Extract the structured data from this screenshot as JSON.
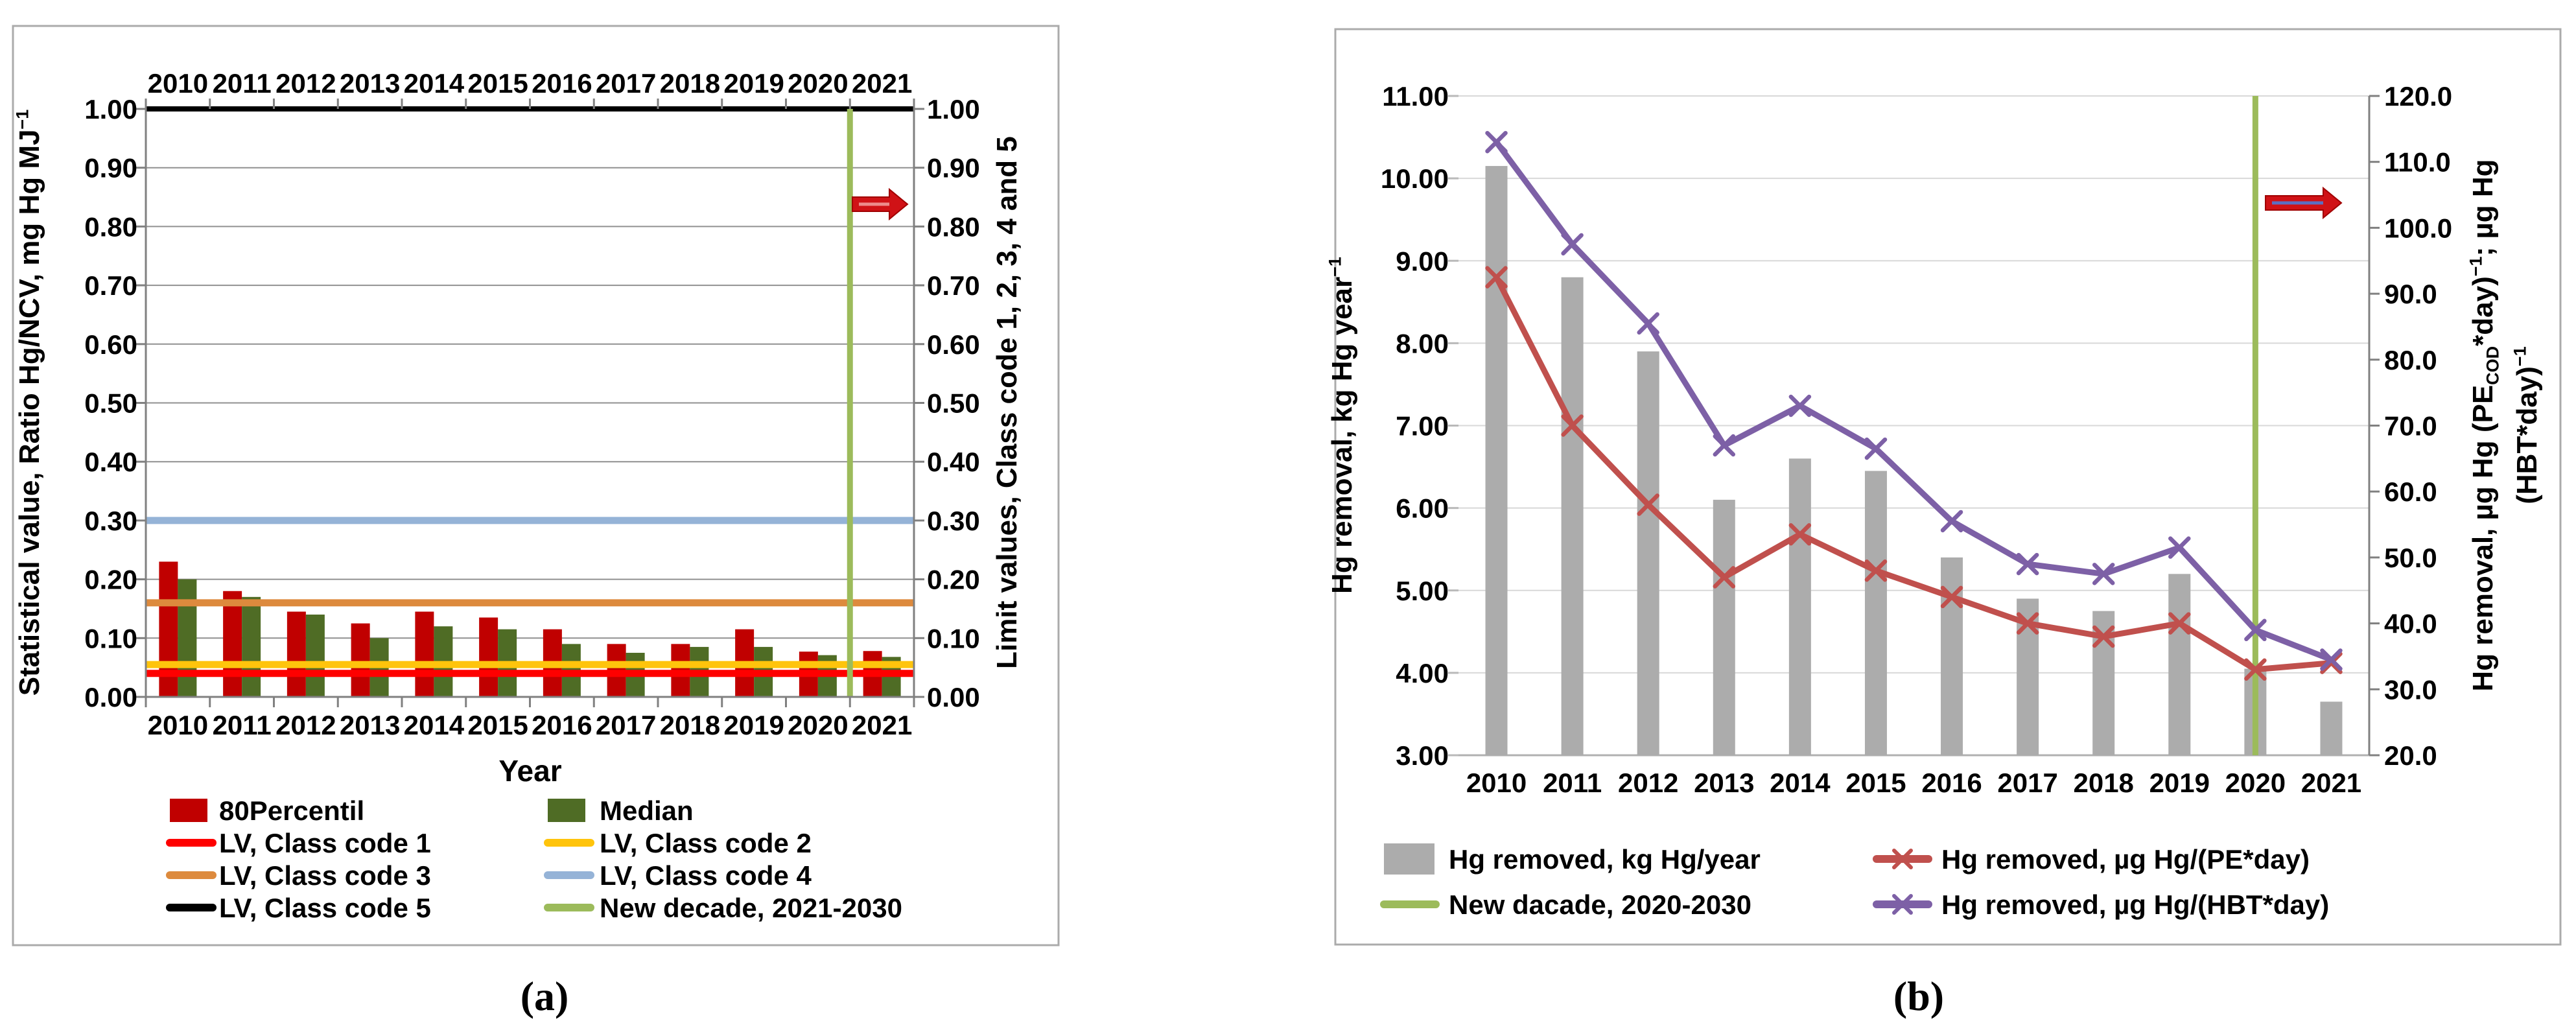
{
  "figure": {
    "background": "#ffffff",
    "border_color": "#ABABAB"
  },
  "panels": {
    "a": {
      "caption": "(a)",
      "x_axis_title": "Year",
      "years": [
        "2010",
        "2011",
        "2012",
        "2013",
        "2014",
        "2015",
        "2016",
        "2017",
        "2018",
        "2019",
        "2020",
        "2021"
      ],
      "left_axis_tick_labels": [
        "1.00",
        "0.90",
        "0.80",
        "0.70",
        "0.60",
        "0.50",
        "0.40",
        "0.30",
        "0.20",
        "0.10",
        "0.00"
      ],
      "right_axis_tick_labels": [
        "1.00",
        "0.90",
        "0.80",
        "0.70",
        "0.60",
        "0.50",
        "0.40",
        "0.30",
        "0.20",
        "0.10",
        "0.00"
      ],
      "left_axis_title_parts": [
        {
          "t": "Statistical value, Ratio Hg/NCV, mg Hg MJ"
        },
        {
          "t": "−1",
          "sup": true
        }
      ],
      "right_axis_title_parts": [
        {
          "t": "Limit values, Class code 1, 2, 3, 4 and 5"
        }
      ],
      "legend_rows": [
        [
          {
            "label": "80Percentil",
            "swatch": "bar",
            "color": "#C00000"
          },
          {
            "label": "Median",
            "swatch": "bar",
            "color": "#4F6C25"
          }
        ],
        [
          {
            "label": "LV, Class code 1",
            "swatch": "line",
            "color": "#FE0000"
          },
          {
            "label": "LV, Class code 2",
            "swatch": "line",
            "color": "#FFC40C"
          }
        ],
        [
          {
            "label": "LV, Class code 3",
            "swatch": "line",
            "color": "#DD8A3D"
          },
          {
            "label": "LV, Class code 4",
            "swatch": "line",
            "color": "#95B3D7"
          }
        ],
        [
          {
            "label": "LV, Class code 5",
            "swatch": "line",
            "color": "#000000"
          },
          {
            "label": "New decade, 2021-2030",
            "swatch": "line",
            "color": "#9CBB5B"
          }
        ]
      ]
    },
    "b": {
      "caption": "(b)",
      "years": [
        "2010",
        "2011",
        "2012",
        "2013",
        "2014",
        "2015",
        "2016",
        "2017",
        "2018",
        "2019",
        "2020",
        "2021"
      ],
      "left_axis_tick_labels": [
        "11.00",
        "10.00",
        "9.00",
        "8.00",
        "7.00",
        "6.00",
        "5.00",
        "4.00",
        "3.00"
      ],
      "right_axis_tick_labels": [
        "120.0",
        "110.0",
        "100.0",
        "90.0",
        "80.0",
        "70.0",
        "60.0",
        "50.0",
        "40.0",
        "30.0",
        "20.0"
      ],
      "left_axis_title_parts": [
        {
          "t": "Hg removal, kg Hg year"
        },
        {
          "t": "−1",
          "sup": true
        }
      ],
      "right_axis_title_lines": [
        [
          {
            "t": "Hg removal, µg Hg (PE"
          },
          {
            "t": "COD",
            "sub": true
          },
          {
            "t": "*day)"
          },
          {
            "t": "−1",
            "sup": true
          },
          {
            "t": "; µg Hg"
          }
        ],
        [
          {
            "t": "(HBT*day)"
          },
          {
            "t": "−1",
            "sup": true
          }
        ]
      ],
      "legend_rows": [
        [
          {
            "label": "Hg removed, kg Hg/year",
            "swatch": "bar",
            "color": "#ACACAC"
          },
          {
            "label": "Hg removed, µg Hg/(PE*day)",
            "swatch": "line-x",
            "color": "#C0504D"
          }
        ],
        [
          {
            "label": "New dacade, 2020-2030",
            "swatch": "line",
            "color": "#9CBB5B"
          },
          {
            "label": "Hg removed, µg Hg/(HBT*day)",
            "swatch": "line-x",
            "color": "#7D60A6"
          }
        ]
      ]
    }
  },
  "chart_data": [
    {
      "id": "a",
      "type": "bar",
      "categories": [
        2010,
        2011,
        2012,
        2013,
        2014,
        2015,
        2016,
        2017,
        2018,
        2019,
        2020,
        2021
      ],
      "series": [
        {
          "name": "80Percentil",
          "color": "#C00000",
          "values": [
            0.23,
            0.18,
            0.145,
            0.125,
            0.145,
            0.135,
            0.115,
            0.09,
            0.09,
            0.115,
            0.077,
            0.078
          ]
        },
        {
          "name": "Median",
          "color": "#4F6C25",
          "values": [
            0.2,
            0.17,
            0.14,
            0.1,
            0.12,
            0.115,
            0.09,
            0.075,
            0.085,
            0.085,
            0.071,
            0.068
          ]
        }
      ],
      "limit_lines": [
        {
          "name": "LV, Class code 1",
          "value": 0.04,
          "color": "#FE0000"
        },
        {
          "name": "LV, Class code 2",
          "value": 0.055,
          "color": "#FFC40C"
        },
        {
          "name": "LV, Class code 3",
          "value": 0.16,
          "color": "#DD8A3D"
        },
        {
          "name": "LV, Class code 4",
          "value": 0.3,
          "color": "#95B3D7"
        },
        {
          "name": "LV, Class code 5",
          "value": 1.0,
          "color": "#000000"
        }
      ],
      "decade_line": {
        "name": "New decade, 2021-2030",
        "color": "#9CBB5B",
        "between": [
          2020,
          2021
        ]
      },
      "arrow_value": 0.84,
      "xlabel": "Year",
      "ylabel": "Statistical value, Ratio Hg/NCV, mg Hg MJ−1",
      "y2label": "Limit values, Class code 1, 2, 3, 4 and 5",
      "ylim": [
        0.0,
        1.0
      ],
      "ytick_step": 0.1,
      "grid": true,
      "legend_position": "bottom"
    },
    {
      "id": "b",
      "type": "combo",
      "categories": [
        2010,
        2011,
        2012,
        2013,
        2014,
        2015,
        2016,
        2017,
        2018,
        2019,
        2020,
        2021
      ],
      "bars": {
        "name": "Hg removed, kg Hg/year",
        "color": "#ACACAC",
        "axis": "left",
        "values": [
          10.15,
          8.8,
          7.9,
          6.1,
          6.6,
          6.45,
          5.4,
          4.9,
          4.75,
          5.2,
          4.05,
          3.65
        ]
      },
      "lines": [
        {
          "name": "Hg removed, µg Hg/(PE*day)",
          "color": "#C0504D",
          "axis": "right",
          "marker": "x",
          "values": [
            92.5,
            70,
            58,
            47,
            53.5,
            48,
            44,
            40,
            38,
            40,
            33,
            34
          ]
        },
        {
          "name": "Hg removed, µg Hg/(HBT*day)",
          "color": "#7D60A6",
          "axis": "right",
          "marker": "x",
          "values": [
            113,
            97.5,
            85.5,
            67,
            73,
            66.5,
            55.5,
            49,
            47.5,
            51.5,
            39,
            34.5
          ]
        }
      ],
      "decade_line": {
        "name": "New dacade, 2020-2030",
        "color": "#9CBB5B",
        "at": 2020
      },
      "arrow_value_right": 104,
      "ylabel": "Hg removal, kg Hg year−1",
      "y2label": "Hg removal, µg Hg (PECOD*day)−1; µg Hg (HBT*day)−1",
      "left_ylim": [
        3.0,
        11.0
      ],
      "left_ytick_step": 1.0,
      "right_ylim": [
        20.0,
        120.0
      ],
      "right_ytick_step": 10.0,
      "grid": true,
      "legend_position": "bottom"
    }
  ]
}
